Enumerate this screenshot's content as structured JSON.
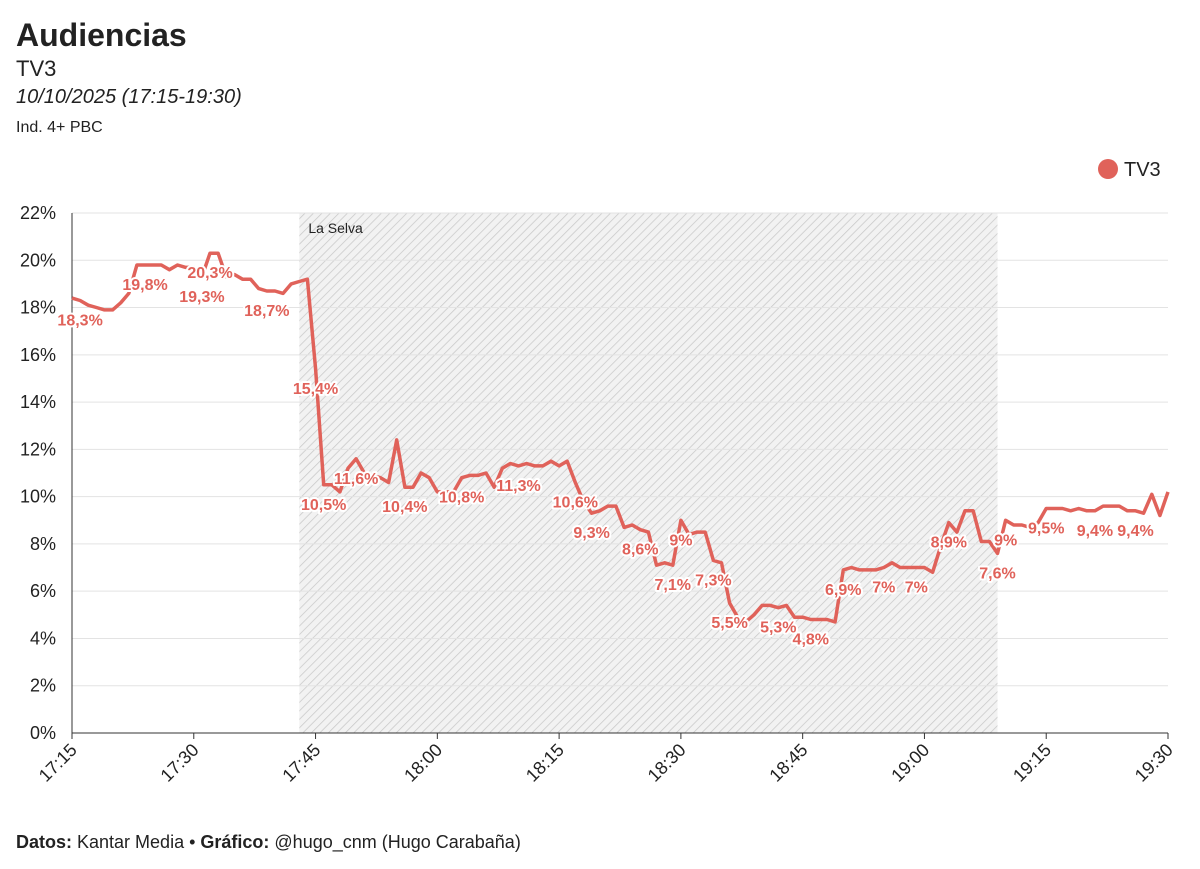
{
  "chart_data": {
    "type": "line",
    "title": "Audiencias",
    "subtitle": "TV3",
    "date": "10/10/2025 (17:15-19:30)",
    "note": "Ind. 4+ PBC",
    "source": [
      {
        "label": "Datos:",
        "text": "Kantar Media"
      },
      {
        "label": "Gráfico:",
        "text": "@hugo_cnm (Hugo Carabaña)"
      }
    ],
    "source_separator": "•",
    "legend": "top-right",
    "grid": true,
    "annotations": [
      {
        "text": "La Selva",
        "x": [
          "17:43",
          "19:09"
        ]
      }
    ],
    "xlim": [
      "17:15",
      "19:30"
    ],
    "xticks": [
      "17:15",
      "17:30",
      "17:45",
      "18:00",
      "18:15",
      "18:30",
      "18:45",
      "19:00",
      "19:15",
      "19:30"
    ],
    "ylim": [
      0,
      22
    ],
    "yticks": [
      {
        "value": 0,
        "label": "0%"
      },
      {
        "value": 2,
        "label": "2%"
      },
      {
        "value": 4,
        "label": "4%"
      },
      {
        "value": 6,
        "label": "6%"
      },
      {
        "value": 8,
        "label": "8%"
      },
      {
        "value": 10,
        "label": "10%"
      },
      {
        "value": 12,
        "label": "12%"
      },
      {
        "value": 14,
        "label": "14%"
      },
      {
        "value": 16,
        "label": "16%"
      },
      {
        "value": 18,
        "label": "18%"
      },
      {
        "value": 20,
        "label": "20%"
      },
      {
        "value": 22,
        "label": "22%"
      }
    ],
    "x": [
      "17:15",
      "17:16",
      "17:17",
      "17:18",
      "17:19",
      "17:20",
      "17:21",
      "17:22",
      "17:23",
      "17:24",
      "17:25",
      "17:26",
      "17:27",
      "17:28",
      "17:29",
      "17:30",
      "17:31",
      "17:32",
      "17:33",
      "17:34",
      "17:35",
      "17:36",
      "17:37",
      "17:38",
      "17:39",
      "17:40",
      "17:41",
      "17:42",
      "17:43",
      "17:44",
      "17:45",
      "17:46",
      "17:47",
      "17:48",
      "17:49",
      "17:50",
      "17:51",
      "17:52",
      "17:53",
      "17:54",
      "17:55",
      "17:56",
      "17:57",
      "17:58",
      "17:59",
      "18:00",
      "18:01",
      "18:02",
      "18:03",
      "18:04",
      "18:05",
      "18:06",
      "18:07",
      "18:08",
      "18:09",
      "18:10",
      "18:11",
      "18:12",
      "18:13",
      "18:14",
      "18:15",
      "18:16",
      "18:17",
      "18:18",
      "18:19",
      "18:20",
      "18:21",
      "18:22",
      "18:23",
      "18:24",
      "18:25",
      "18:26",
      "18:27",
      "18:28",
      "18:29",
      "18:30",
      "18:31",
      "18:32",
      "18:33",
      "18:34",
      "18:35",
      "18:36",
      "18:37",
      "18:38",
      "18:39",
      "18:40",
      "18:41",
      "18:42",
      "18:43",
      "18:44",
      "18:45",
      "18:46",
      "18:47",
      "18:48",
      "18:49",
      "18:50",
      "18:51",
      "18:52",
      "18:53",
      "18:54",
      "18:55",
      "18:56",
      "18:57",
      "18:58",
      "18:59",
      "19:00",
      "19:01",
      "19:02",
      "19:03",
      "19:04",
      "19:05",
      "19:06",
      "19:07",
      "19:08",
      "19:09",
      "19:10",
      "19:11",
      "19:12",
      "19:13",
      "19:14",
      "19:15",
      "19:16",
      "19:17",
      "19:18",
      "19:19",
      "19:20",
      "19:21",
      "19:22",
      "19:23",
      "19:24",
      "19:25",
      "19:26",
      "19:27",
      "19:28",
      "19:29",
      "19:30"
    ],
    "series": [
      {
        "name": "TV3",
        "color": "#e0625a",
        "values": [
          18.4,
          18.3,
          18.1,
          18.0,
          17.9,
          17.9,
          18.2,
          18.6,
          19.8,
          19.8,
          19.8,
          19.8,
          19.6,
          19.8,
          19.7,
          19.7,
          19.3,
          20.3,
          20.3,
          19.3,
          19.4,
          19.2,
          19.2,
          18.8,
          18.7,
          18.7,
          18.6,
          19.0,
          19.1,
          19.2,
          15.4,
          10.5,
          10.5,
          10.2,
          11.2,
          11.6,
          11.0,
          10.9,
          10.8,
          10.6,
          12.4,
          10.4,
          10.4,
          11.0,
          10.8,
          10.2,
          10.2,
          10.2,
          10.8,
          10.9,
          10.9,
          11.0,
          10.4,
          11.2,
          11.4,
          11.3,
          11.4,
          11.3,
          11.3,
          11.5,
          11.3,
          11.5,
          10.6,
          9.8,
          9.3,
          9.4,
          9.6,
          9.6,
          8.7,
          8.8,
          8.6,
          8.5,
          7.1,
          7.2,
          7.1,
          9.0,
          8.4,
          8.5,
          8.5,
          7.3,
          7.2,
          5.5,
          4.9,
          4.7,
          5.0,
          5.4,
          5.4,
          5.3,
          5.4,
          4.9,
          4.9,
          4.8,
          4.8,
          4.8,
          4.7,
          6.9,
          7.0,
          6.9,
          6.9,
          6.9,
          7.0,
          7.2,
          7.0,
          7.0,
          7.0,
          7.0,
          6.8,
          7.9,
          8.9,
          8.5,
          9.4,
          9.4,
          8.1,
          8.1,
          7.6,
          9.0,
          8.8,
          8.8,
          8.7,
          8.9,
          9.5,
          9.5,
          9.5,
          9.4,
          9.5,
          9.4,
          9.4,
          9.6,
          9.6,
          9.6,
          9.4,
          9.4,
          9.3,
          10.1,
          9.2,
          10.2
        ],
        "value_labels": [
          null,
          "18,3%",
          null,
          null,
          null,
          null,
          null,
          null,
          null,
          "19,8%",
          null,
          null,
          null,
          null,
          null,
          null,
          "19,3%",
          "20,3%",
          null,
          null,
          null,
          null,
          null,
          null,
          "18,7%",
          null,
          null,
          null,
          null,
          null,
          "15,4%",
          "10,5%",
          null,
          null,
          null,
          "11,6%",
          null,
          null,
          null,
          null,
          null,
          "10,4%",
          null,
          null,
          null,
          null,
          null,
          null,
          "10,8%",
          null,
          null,
          null,
          null,
          null,
          null,
          "11,3%",
          null,
          null,
          null,
          null,
          null,
          null,
          "10,6%",
          null,
          "9,3%",
          null,
          null,
          null,
          null,
          null,
          "8,6%",
          null,
          null,
          null,
          "7,1%",
          "9%",
          null,
          null,
          null,
          "7,3%",
          null,
          "5,5%",
          null,
          null,
          null,
          null,
          null,
          "5,3%",
          null,
          null,
          null,
          "4,8%",
          null,
          null,
          null,
          "6,9%",
          null,
          null,
          null,
          null,
          "7%",
          null,
          null,
          null,
          "7%",
          null,
          null,
          null,
          "8,9%",
          null,
          null,
          null,
          null,
          null,
          "7,6%",
          "9%",
          null,
          null,
          null,
          null,
          "9,5%",
          null,
          null,
          null,
          null,
          null,
          "9,4%",
          null,
          null,
          null,
          null,
          "9,4%",
          null,
          null,
          null,
          null
        ]
      }
    ]
  }
}
